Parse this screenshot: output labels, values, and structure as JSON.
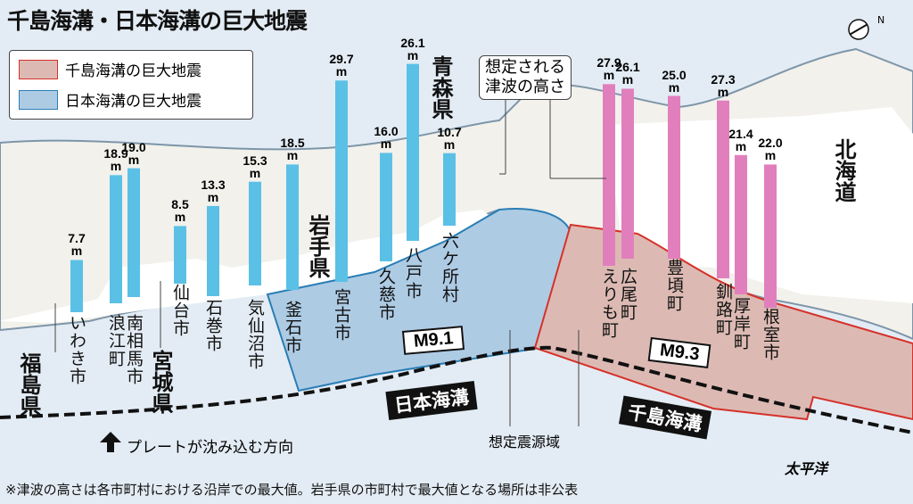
{
  "title": "千島海溝・日本海溝の巨大地震",
  "legend": [
    {
      "label": "千島海溝の巨大地震",
      "color": "#dcbab3",
      "border": "#d6312a"
    },
    {
      "label": "日本海溝の巨大地震",
      "color": "#aecbe4",
      "border": "#2a7db5"
    }
  ],
  "callout": {
    "line1": "想定される",
    "line2": "津波の高さ"
  },
  "prefectures": {
    "fukushima": "福島県",
    "miyagi": "宮城県",
    "iwate": "岩手県",
    "aomori": "青森県",
    "hokkaido": "北海道"
  },
  "magnitudes": {
    "japan": "M9.1",
    "chishima": "M9.3"
  },
  "trenches": {
    "japan": "日本海溝",
    "chishima": "千島海溝"
  },
  "source_area": "想定震源域",
  "plate_label": "プレートが沈み込む方向",
  "ocean": "太平洋",
  "note": "※津波の高さは各市町村における沿岸での最大値。岩手県の市町村で最大値となる場所は非公表",
  "unit": "m",
  "chart_data": {
    "type": "bar",
    "title": "千島海溝・日本海溝の巨大地震",
    "unit": "m",
    "series": [
      {
        "name": "日本海溝の巨大地震",
        "color": "#5bc0e6",
        "categories": [
          "いわき市",
          "浪江町",
          "南相馬市",
          "仙台市",
          "石巻市",
          "気仙沼市",
          "釜石市",
          "宮古市",
          "久慈市",
          "八戸市",
          "六ケ所村"
        ],
        "values": [
          7.7,
          18.9,
          19.0,
          8.5,
          13.3,
          15.3,
          18.5,
          29.7,
          16.0,
          26.1,
          10.7
        ]
      },
      {
        "name": "千島海溝の巨大地震",
        "color": "#e17fbd",
        "categories": [
          "えりも町",
          "広尾町",
          "豊頃町",
          "釧路町",
          "厚岸町",
          "根室市"
        ],
        "values": [
          27.9,
          26.1,
          25.0,
          27.3,
          21.4,
          22.0
        ]
      }
    ]
  }
}
